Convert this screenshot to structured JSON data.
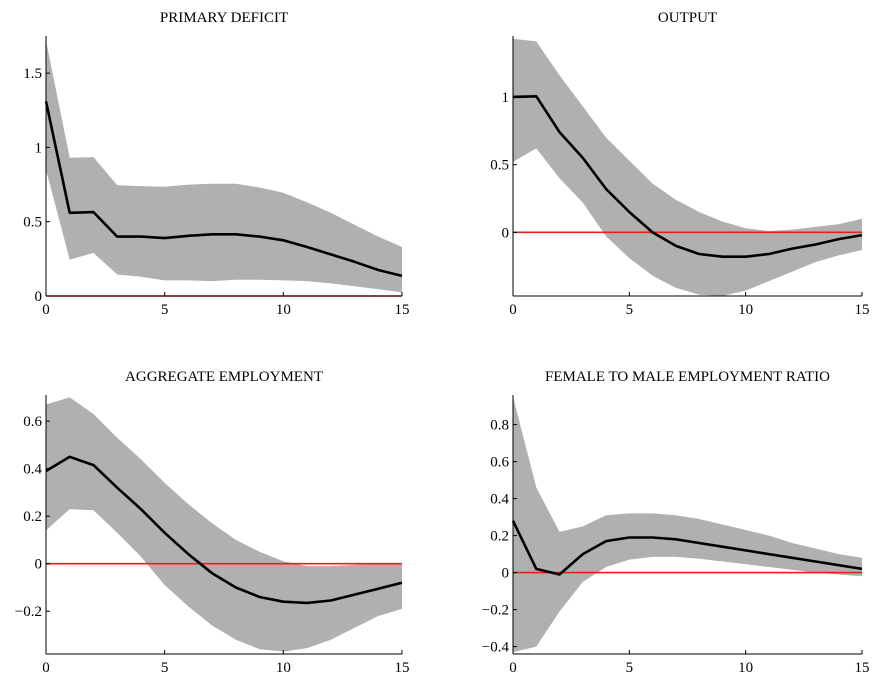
{
  "chart_data": [
    {
      "type": "line",
      "title": "PRIMARY DEFICIT",
      "xlim": [
        0,
        15
      ],
      "ylim": [
        0,
        1.75
      ],
      "xticks": [
        "0",
        "5",
        "10",
        "15"
      ],
      "xtick_values": [
        0,
        5,
        10,
        15
      ],
      "yticks": [
        "0",
        "0.5",
        "1",
        "1.5"
      ],
      "ytick_values": [
        0,
        0.5,
        1,
        1.5
      ],
      "x": [
        0,
        1,
        2,
        3,
        4,
        5,
        6,
        7,
        8,
        9,
        10,
        11,
        12,
        13,
        14,
        15
      ],
      "series": [
        {
          "role": "response",
          "values": [
            1.31,
            0.56,
            0.565,
            0.4,
            0.4,
            0.39,
            0.405,
            0.415,
            0.415,
            0.4,
            0.375,
            0.33,
            0.28,
            0.23,
            0.175,
            0.135
          ]
        },
        {
          "role": "upper",
          "values": [
            1.72,
            0.93,
            0.935,
            0.745,
            0.74,
            0.735,
            0.75,
            0.755,
            0.755,
            0.73,
            0.695,
            0.63,
            0.56,
            0.48,
            0.4,
            0.33
          ]
        },
        {
          "role": "lower",
          "values": [
            0.85,
            0.245,
            0.29,
            0.145,
            0.13,
            0.105,
            0.105,
            0.1,
            0.11,
            0.11,
            0.105,
            0.1,
            0.085,
            0.065,
            0.045,
            0.025
          ]
        }
      ],
      "zero_line": 0,
      "colors": {
        "band": "#b0b0b0",
        "line": "#000000",
        "zero": "#e8201a"
      }
    },
    {
      "type": "line",
      "title": "OUTPUT",
      "xlim": [
        0,
        15
      ],
      "ylim": [
        -0.47,
        1.45
      ],
      "xticks": [
        "0",
        "5",
        "10",
        "15"
      ],
      "xtick_values": [
        0,
        5,
        10,
        15
      ],
      "yticks": [
        "0",
        "0.5",
        "1"
      ],
      "ytick_values": [
        0,
        0.5,
        1
      ],
      "x": [
        0,
        1,
        2,
        3,
        4,
        5,
        6,
        7,
        8,
        9,
        10,
        11,
        12,
        13,
        14,
        15
      ],
      "series": [
        {
          "role": "response",
          "values": [
            1.0,
            1.005,
            0.74,
            0.55,
            0.32,
            0.15,
            0.0,
            -0.1,
            -0.16,
            -0.18,
            -0.18,
            -0.16,
            -0.12,
            -0.09,
            -0.05,
            -0.02
          ]
        },
        {
          "role": "upper",
          "values": [
            1.43,
            1.41,
            1.16,
            0.93,
            0.7,
            0.53,
            0.36,
            0.24,
            0.15,
            0.08,
            0.03,
            0.01,
            0.02,
            0.04,
            0.06,
            0.1
          ]
        },
        {
          "role": "lower",
          "values": [
            0.52,
            0.62,
            0.4,
            0.22,
            -0.03,
            -0.19,
            -0.32,
            -0.41,
            -0.46,
            -0.47,
            -0.43,
            -0.36,
            -0.29,
            -0.22,
            -0.17,
            -0.13
          ]
        }
      ],
      "zero_line": 0,
      "colors": {
        "band": "#b0b0b0",
        "line": "#000000",
        "zero": "#e8201a"
      }
    },
    {
      "type": "line",
      "title": "AGGREGATE EMPLOYMENT",
      "xlim": [
        0,
        15
      ],
      "ylim": [
        -0.38,
        0.71
      ],
      "xticks": [
        "0",
        "5",
        "10",
        "15"
      ],
      "xtick_values": [
        0,
        5,
        10,
        15
      ],
      "yticks": [
        "-0.2",
        "0",
        "0.2",
        "0.4",
        "0.6"
      ],
      "ytick_values": [
        -0.2,
        0,
        0.2,
        0.4,
        0.6
      ],
      "x": [
        0,
        1,
        2,
        3,
        4,
        5,
        6,
        7,
        8,
        9,
        10,
        11,
        12,
        13,
        14,
        15
      ],
      "series": [
        {
          "role": "response",
          "values": [
            0.39,
            0.45,
            0.415,
            0.32,
            0.23,
            0.13,
            0.04,
            -0.04,
            -0.1,
            -0.14,
            -0.16,
            -0.165,
            -0.155,
            -0.13,
            -0.105,
            -0.08
          ]
        },
        {
          "role": "upper",
          "values": [
            0.67,
            0.7,
            0.63,
            0.53,
            0.44,
            0.34,
            0.25,
            0.17,
            0.1,
            0.05,
            0.01,
            -0.01,
            -0.01,
            -0.005,
            0.0,
            0.0
          ]
        },
        {
          "role": "lower",
          "values": [
            0.14,
            0.23,
            0.225,
            0.13,
            0.03,
            -0.09,
            -0.18,
            -0.26,
            -0.32,
            -0.36,
            -0.37,
            -0.355,
            -0.32,
            -0.27,
            -0.22,
            -0.19
          ]
        }
      ],
      "zero_line": 0,
      "colors": {
        "band": "#b0b0b0",
        "line": "#000000",
        "zero": "#e8201a"
      }
    },
    {
      "type": "line",
      "title": "FEMALE TO MALE EMPLOYMENT RATIO",
      "xlim": [
        0,
        15
      ],
      "ylim": [
        -0.44,
        0.96
      ],
      "xticks": [
        "0",
        "5",
        "10",
        "15"
      ],
      "xtick_values": [
        0,
        5,
        10,
        15
      ],
      "yticks": [
        "-0.4",
        "-0.2",
        "0",
        "0.2",
        "0.4",
        "0.6",
        "0.8"
      ],
      "ytick_values": [
        -0.4,
        -0.2,
        0,
        0.2,
        0.4,
        0.6,
        0.8
      ],
      "x": [
        0,
        1,
        2,
        3,
        4,
        5,
        6,
        7,
        8,
        9,
        10,
        11,
        12,
        13,
        14,
        15
      ],
      "series": [
        {
          "role": "response",
          "values": [
            0.28,
            0.02,
            -0.01,
            0.1,
            0.17,
            0.19,
            0.19,
            0.18,
            0.16,
            0.14,
            0.12,
            0.1,
            0.08,
            0.06,
            0.04,
            0.02
          ]
        },
        {
          "role": "upper",
          "values": [
            0.95,
            0.46,
            0.22,
            0.25,
            0.31,
            0.32,
            0.32,
            0.31,
            0.29,
            0.26,
            0.23,
            0.2,
            0.16,
            0.13,
            0.1,
            0.08
          ]
        },
        {
          "role": "lower",
          "values": [
            -0.43,
            -0.4,
            -0.21,
            -0.05,
            0.03,
            0.07,
            0.085,
            0.085,
            0.075,
            0.06,
            0.045,
            0.03,
            0.015,
            0.0,
            -0.01,
            -0.02
          ]
        }
      ],
      "zero_line": 0,
      "colors": {
        "band": "#b0b0b0",
        "line": "#000000",
        "zero": "#e8201a"
      }
    }
  ]
}
